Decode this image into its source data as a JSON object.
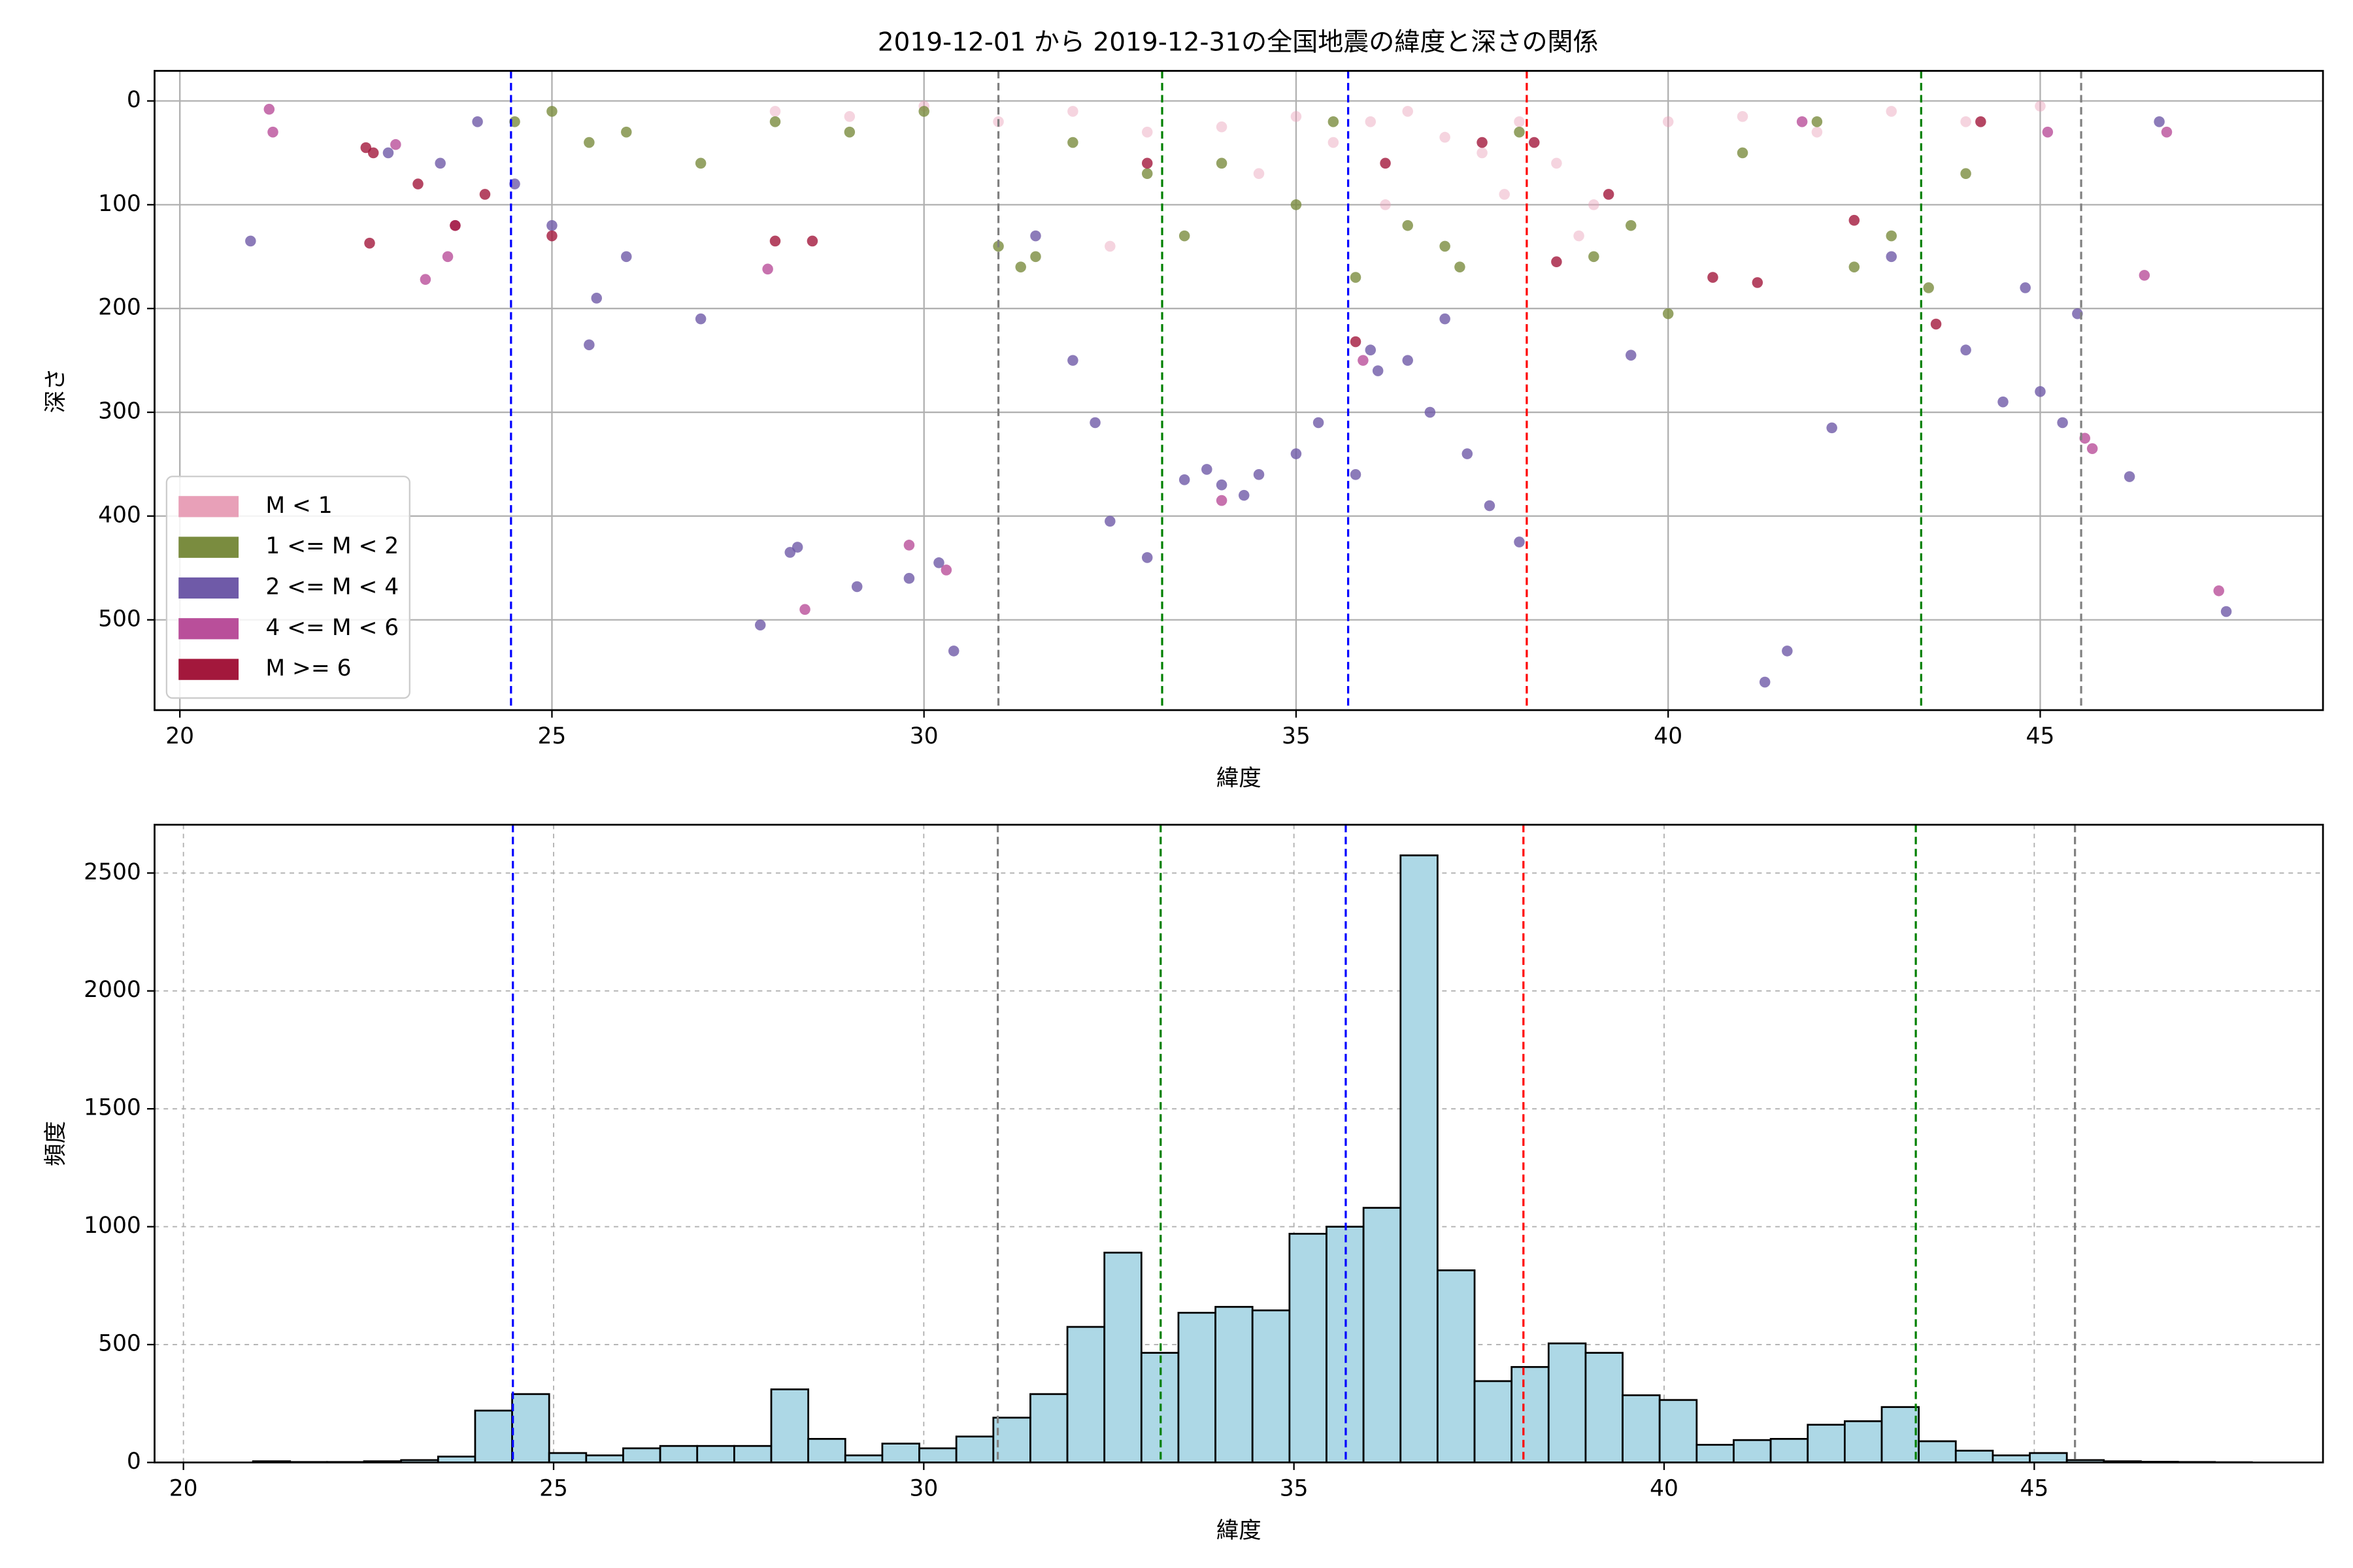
{
  "chart_data": [
    {
      "type": "scatter",
      "title": "2019-12-01 から 2019-12-31の全国地震の緯度と深さの関係",
      "xlabel": "緯度",
      "ylabel": "深さ",
      "xlim": [
        19.66,
        48.8
      ],
      "xticks": [
        20,
        25,
        30,
        35,
        40,
        45
      ],
      "ylim": [
        587,
        -29
      ],
      "yticks": [
        0,
        100,
        200,
        300,
        400,
        500
      ],
      "grid": true,
      "legend": "lower left",
      "vlines": [
        {
          "x": 24.45,
          "color": "#0000ff"
        },
        {
          "x": 31.0,
          "color": "#808080"
        },
        {
          "x": 33.2,
          "color": "#008000"
        },
        {
          "x": 35.7,
          "color": "#0000ff"
        },
        {
          "x": 38.1,
          "color": "#ff0000"
        },
        {
          "x": 43.4,
          "color": "#008000"
        },
        {
          "x": 45.55,
          "color": "#808080"
        }
      ],
      "series": [
        {
          "name": "M < 1",
          "color": "#e8a0b8",
          "x": [
            28,
            29,
            30,
            31,
            32,
            33,
            34,
            35,
            35.5,
            36,
            36.5,
            37,
            37.5,
            38,
            38.5,
            39,
            40,
            41,
            42,
            43,
            44,
            45,
            32.5,
            34.5,
            36.2,
            37.8,
            38.8
          ],
          "y": [
            10,
            15,
            5,
            20,
            10,
            30,
            25,
            15,
            40,
            20,
            10,
            35,
            50,
            20,
            60,
            100,
            20,
            15,
            30,
            10,
            20,
            5,
            140,
            70,
            100,
            90,
            130
          ]
        },
        {
          "name": "1 <= M < 2",
          "color": "#7a8c3f",
          "x": [
            24.5,
            25,
            25.5,
            26,
            27,
            28,
            29,
            30,
            31,
            31.3,
            32,
            33,
            33.5,
            34,
            35,
            35.5,
            35.8,
            36.5,
            37,
            38,
            39,
            39.5,
            40,
            41,
            42,
            42.5,
            43,
            43.5,
            44,
            37.2,
            31.5
          ],
          "y": [
            20,
            10,
            40,
            30,
            60,
            20,
            30,
            10,
            140,
            160,
            40,
            70,
            130,
            60,
            100,
            20,
            170,
            120,
            140,
            30,
            150,
            120,
            205,
            50,
            20,
            160,
            130,
            180,
            70,
            160,
            150
          ]
        },
        {
          "name": "2 <= M < 4",
          "color": "#6f5aa8",
          "x": [
            20.95,
            22.8,
            23.5,
            24,
            24.5,
            25,
            25.5,
            25.6,
            26,
            27,
            27.8,
            28.2,
            28.3,
            29.1,
            29.8,
            30.2,
            30.4,
            31.5,
            32,
            32.3,
            32.5,
            33,
            33.5,
            33.8,
            34,
            34.3,
            34.5,
            35,
            35.3,
            35.8,
            36,
            36.1,
            36.5,
            36.8,
            37,
            37.3,
            37.6,
            38,
            39.5,
            41.3,
            41.6,
            42.2,
            43,
            44,
            44.5,
            45,
            45.3,
            45.5,
            46.2,
            46.6,
            47.5,
            44.8
          ],
          "y": [
            135,
            50,
            60,
            20,
            80,
            120,
            235,
            190,
            150,
            210,
            505,
            435,
            430,
            468,
            460,
            445,
            530,
            130,
            250,
            310,
            405,
            440,
            365,
            355,
            370,
            380,
            360,
            340,
            310,
            360,
            240,
            260,
            250,
            300,
            210,
            340,
            390,
            425,
            245,
            560,
            530,
            315,
            150,
            240,
            290,
            280,
            310,
            205,
            362,
            20,
            492,
            180
          ]
        },
        {
          "name": "4 <= M < 6",
          "color": "#b94f9a",
          "x": [
            21.2,
            21.25,
            22.9,
            23.3,
            23.6,
            23.7,
            27.9,
            28.4,
            29.8,
            30.3,
            34,
            35.9,
            45.6,
            45.7,
            46.4,
            46.7,
            47.4,
            41.8,
            45.1
          ],
          "y": [
            8,
            30,
            42,
            172,
            150,
            120,
            162,
            490,
            428,
            452,
            385,
            250,
            325,
            335,
            168,
            30,
            472,
            20,
            30
          ]
        },
        {
          "name": "M >= 6",
          "color": "#a3183c",
          "x": [
            22.5,
            22.6,
            22.55,
            23.2,
            23.7,
            24.1,
            25,
            28,
            28.5,
            33,
            35.8,
            36.2,
            37.5,
            38.2,
            38.5,
            39.2,
            40.6,
            41.2,
            42.5,
            43.6,
            44.2
          ],
          "y": [
            45,
            50,
            137,
            80,
            120,
            90,
            130,
            135,
            135,
            60,
            232,
            60,
            40,
            40,
            155,
            90,
            170,
            175,
            115,
            215,
            20
          ]
        }
      ]
    },
    {
      "type": "histogram",
      "xlabel": "緯度",
      "ylabel": "頻度",
      "xlim": [
        19.61,
        48.9
      ],
      "xticks": [
        20,
        25,
        30,
        35,
        40,
        45
      ],
      "ylim": [
        0,
        2705
      ],
      "yticks": [
        0,
        500,
        1000,
        1500,
        2000,
        2500
      ],
      "grid": true,
      "grid_dashed": true,
      "color": "#add8e6",
      "vlines": [
        {
          "x": 24.45,
          "color": "#0000ff"
        },
        {
          "x": 31.0,
          "color": "#808080"
        },
        {
          "x": 33.2,
          "color": "#008000"
        },
        {
          "x": 35.7,
          "color": "#0000ff"
        },
        {
          "x": 38.1,
          "color": "#ff0000"
        },
        {
          "x": 43.4,
          "color": "#008000"
        },
        {
          "x": 45.55,
          "color": "#808080"
        }
      ],
      "bins": [
        20.94,
        21.44,
        21.94,
        22.44,
        22.94,
        23.44,
        23.94,
        24.44,
        24.94,
        25.44,
        25.94,
        26.44,
        26.94,
        27.44,
        27.94,
        28.44,
        28.94,
        29.44,
        29.94,
        30.44,
        30.94,
        31.44,
        31.94,
        32.44,
        32.94,
        33.44,
        33.94,
        34.44,
        34.94,
        35.44,
        35.94,
        36.44,
        36.94,
        37.44,
        37.94,
        38.44,
        38.94,
        39.44,
        39.94,
        40.44,
        40.94,
        41.44,
        41.94,
        42.44,
        42.94,
        43.44,
        43.94,
        44.44,
        44.94,
        45.44,
        45.94,
        46.44,
        46.94,
        47.44,
        47.94
      ],
      "values": [
        5,
        2,
        2,
        5,
        10,
        25,
        220,
        290,
        40,
        30,
        60,
        70,
        70,
        70,
        310,
        100,
        30,
        80,
        60,
        110,
        190,
        290,
        575,
        890,
        465,
        635,
        660,
        645,
        970,
        1000,
        1080,
        2575,
        815,
        345,
        405,
        505,
        465,
        285,
        265,
        75,
        95,
        100,
        160,
        175,
        235,
        90,
        50,
        30,
        40,
        10,
        5,
        3,
        2,
        1
      ]
    }
  ]
}
